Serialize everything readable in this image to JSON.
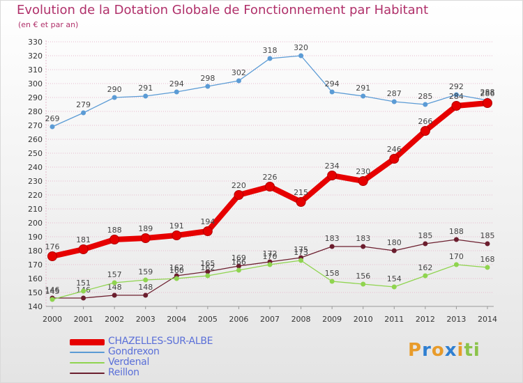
{
  "header": {
    "title": "Evolution de la Dotation Globale de Fonctionnement par Habitant",
    "subtitle": "(en € et par an)"
  },
  "logo": {
    "text": "Proxiti",
    "letters": [
      "P",
      "r",
      "o",
      "x",
      "i",
      "t",
      "i"
    ]
  },
  "colors": {
    "title": "#b0306a",
    "legend_text": "#5a6fd8",
    "grid": "#e7b9cd",
    "series": [
      "#e60000",
      "#5b9bd5",
      "#8fd44f",
      "#6b1e2e"
    ],
    "logo_letters": [
      "#e89b2a",
      "#2f7fd1",
      "#e89b2a",
      "#2f7fd1",
      "#e89b2a",
      "#8bc34a",
      "#8bc34a"
    ]
  },
  "chart_data": {
    "type": "line",
    "title": "Evolution de la Dotation Globale de Fonctionnement par Habitant",
    "subtitle": "(en € et par an)",
    "xlabel": "",
    "ylabel": "",
    "x": [
      2000,
      2001,
      2002,
      2003,
      2004,
      2005,
      2006,
      2007,
      2008,
      2009,
      2010,
      2011,
      2012,
      2013,
      2014
    ],
    "ylim": [
      140,
      330
    ],
    "yticks": [
      140,
      150,
      160,
      170,
      180,
      190,
      200,
      210,
      220,
      230,
      240,
      250,
      260,
      270,
      280,
      290,
      300,
      310,
      320,
      330
    ],
    "grid": "horizontal",
    "legend_position": "bottom-left",
    "series": [
      {
        "name": "CHAZELLES-SUR-ALBE",
        "values": [
          176,
          181,
          188,
          189,
          191,
          194,
          220,
          226,
          215,
          234,
          230,
          246,
          266,
          284,
          286
        ]
      },
      {
        "name": "Gondrexon",
        "values": [
          269,
          279,
          290,
          291,
          294,
          298,
          302,
          318,
          320,
          294,
          291,
          287,
          285,
          292,
          288
        ]
      },
      {
        "name": "Verdenal",
        "values": [
          145,
          151,
          157,
          159,
          160,
          162,
          166,
          170,
          173,
          158,
          156,
          154,
          162,
          170,
          168
        ]
      },
      {
        "name": "Reillon",
        "values": [
          146,
          146,
          148,
          148,
          162,
          165,
          169,
          172,
          175,
          183,
          183,
          180,
          185,
          188,
          185
        ]
      }
    ]
  }
}
